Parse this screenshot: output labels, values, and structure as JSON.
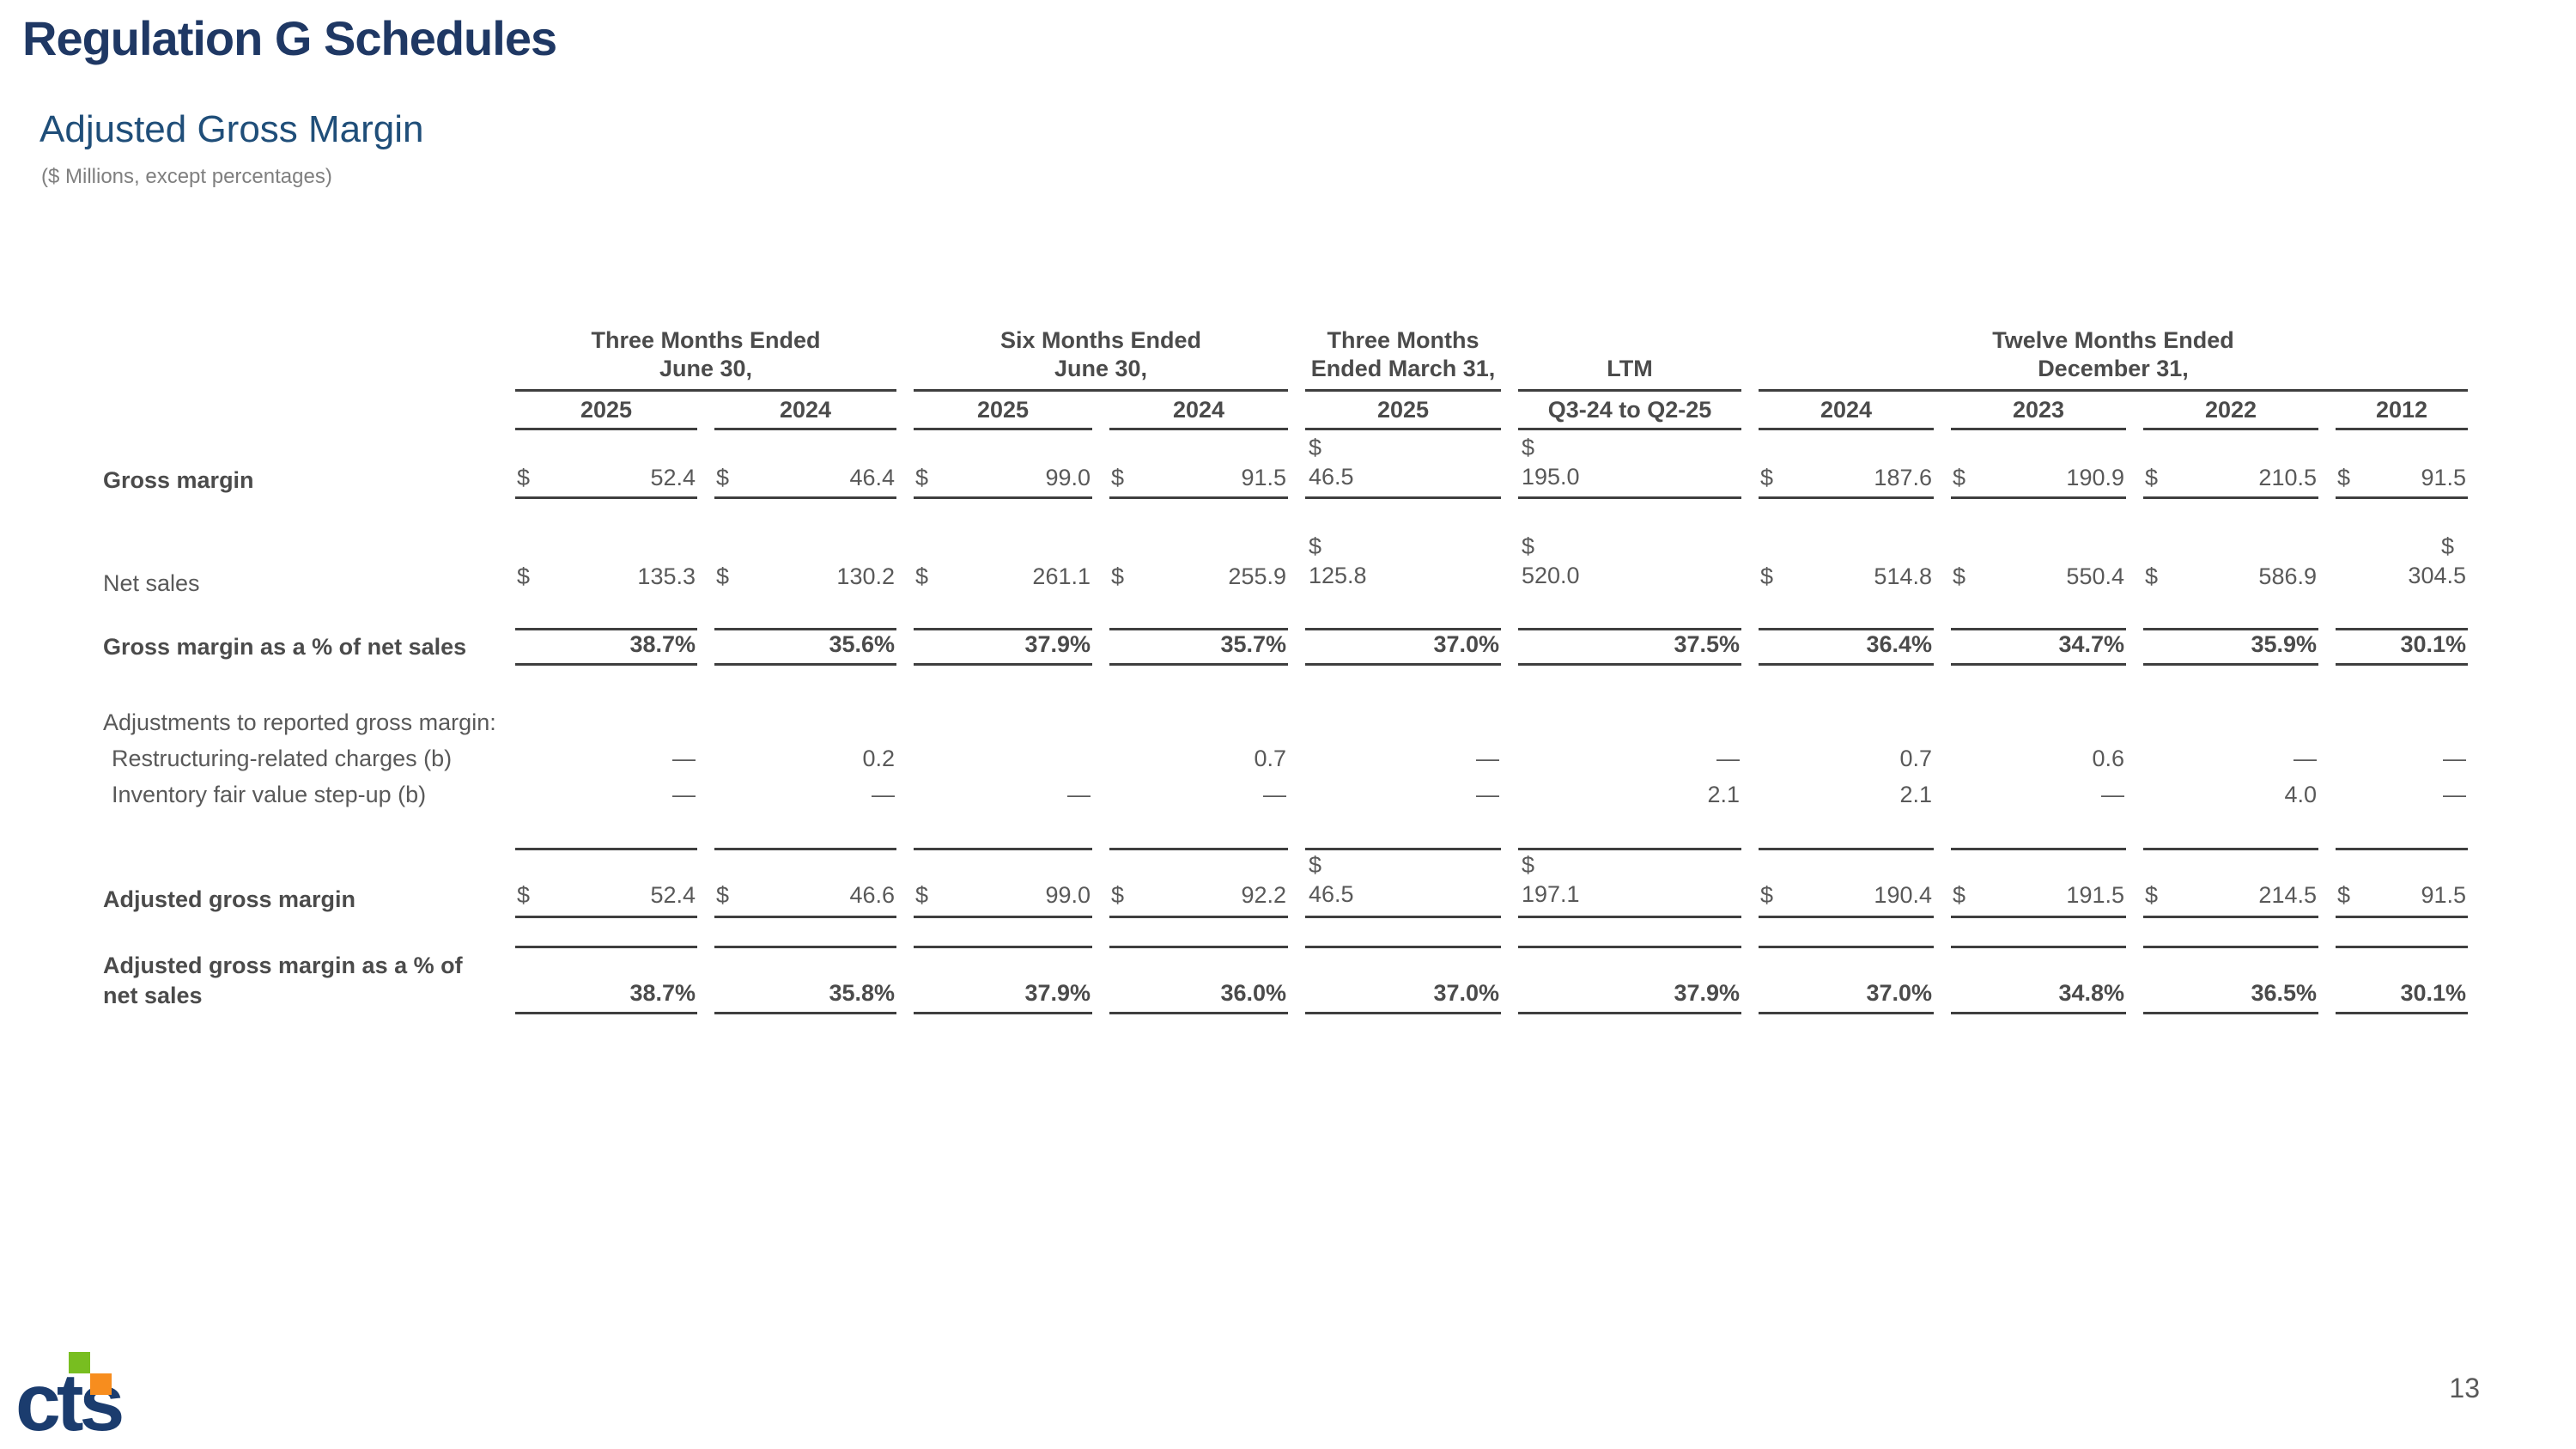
{
  "page": {
    "title": "Regulation G Schedules",
    "subtitle": "Adjusted Gross Margin",
    "units_note": "($ Millions, except percentages)",
    "page_number": "13",
    "logo_text": "cts"
  },
  "colors": {
    "title_navy": "#1f3864",
    "subtitle_blue": "#1f4e79",
    "table_text": "#595959",
    "rule": "#3f3f3f",
    "logo_navy": "#1b3c6e",
    "logo_green": "#78be20",
    "logo_orange": "#f78d1e"
  },
  "table": {
    "groups": [
      {
        "label": "Three Months Ended\nJune 30,",
        "span": 2,
        "years": [
          "2025",
          "2024"
        ]
      },
      {
        "label": "Six Months Ended\nJune 30,",
        "span": 2,
        "years": [
          "2025",
          "2024"
        ]
      },
      {
        "label": "Three Months\nEnded March 31,",
        "span": 1,
        "years": [
          "2025"
        ]
      },
      {
        "label": "LTM",
        "span": 1,
        "years": [
          "Q3-24 to Q2-25"
        ]
      },
      {
        "label": "Twelve Months Ended\nDecember 31,",
        "span": 4,
        "years": [
          "2024",
          "2023",
          "2022",
          "2012"
        ]
      }
    ],
    "rows": [
      {
        "key": "gross",
        "type": "data",
        "label": "Gross margin",
        "label_bold": true,
        "rule_below": true,
        "cells": [
          {
            "d": "$",
            "v": "52.4"
          },
          {
            "d": "$",
            "v": "46.4"
          },
          {
            "d": "$",
            "v": "99.0"
          },
          {
            "d": "$",
            "v": "91.5"
          },
          {
            "d": "$",
            "v": "46.5",
            "wrap": "left"
          },
          {
            "d": "$",
            "v": "195.0",
            "wrap": "left"
          },
          {
            "d": "$",
            "v": "187.6"
          },
          {
            "d": "$",
            "v": "190.9"
          },
          {
            "d": "$",
            "v": "210.5"
          },
          {
            "d": "$",
            "v": "91.5"
          }
        ]
      },
      {
        "key": "netsales",
        "type": "data",
        "label": "Net sales",
        "cells": [
          {
            "d": "$",
            "v": "135.3"
          },
          {
            "d": "$",
            "v": "130.2"
          },
          {
            "d": "$",
            "v": "261.1"
          },
          {
            "d": "$",
            "v": "255.9"
          },
          {
            "d": "$",
            "v": "125.8",
            "wrap": "left"
          },
          {
            "d": "$",
            "v": "520.0",
            "wrap": "left"
          },
          {
            "d": "$",
            "v": "514.8"
          },
          {
            "d": "$",
            "v": "550.4"
          },
          {
            "d": "$",
            "v": "586.9"
          },
          {
            "d": "$",
            "v": "304.5",
            "wrap": "right"
          }
        ]
      },
      {
        "key": "spa",
        "type": "spacer"
      },
      {
        "key": "pct",
        "type": "data",
        "label": "Gross margin as a % of net sales",
        "label_bold": true,
        "bold_values": true,
        "rule_above": true,
        "rule_below": true,
        "cells": [
          {
            "v": "38.7%"
          },
          {
            "v": "35.6%"
          },
          {
            "v": "37.9%"
          },
          {
            "v": "35.7%"
          },
          {
            "v": "37.0%"
          },
          {
            "v": "37.5%"
          },
          {
            "v": "36.4%"
          },
          {
            "v": "34.7%"
          },
          {
            "v": "35.9%"
          },
          {
            "v": "30.1%"
          }
        ]
      },
      {
        "key": "spb",
        "type": "spacer"
      },
      {
        "key": "adjhead",
        "type": "data",
        "label": "Adjustments to reported gross margin:",
        "cells": []
      },
      {
        "key": "restr",
        "type": "data",
        "label": "Restructuring-related charges (b)",
        "indent": true,
        "cells": [
          {
            "v": "—"
          },
          {
            "v": "0.2"
          },
          {
            "v": ""
          },
          {
            "v": "0.7"
          },
          {
            "v": "—"
          },
          {
            "v": "—"
          },
          {
            "v": "0.7"
          },
          {
            "v": "0.6"
          },
          {
            "v": "—"
          },
          {
            "v": "—"
          }
        ]
      },
      {
        "key": "inv",
        "type": "data",
        "label": "Inventory fair value step-up (b)",
        "indent": true,
        "cells": [
          {
            "v": "—"
          },
          {
            "v": "—"
          },
          {
            "v": "—"
          },
          {
            "v": "—"
          },
          {
            "v": "—"
          },
          {
            "v": "2.1"
          },
          {
            "v": "2.1"
          },
          {
            "v": "—"
          },
          {
            "v": "4.0"
          },
          {
            "v": "—"
          }
        ]
      },
      {
        "key": "spc",
        "type": "spacer"
      },
      {
        "key": "rule1",
        "type": "rule"
      },
      {
        "key": "adj",
        "type": "data",
        "label": "Adjusted gross margin",
        "label_bold": true,
        "rule_below": true,
        "cells": [
          {
            "d": "$",
            "v": "52.4"
          },
          {
            "d": "$",
            "v": "46.6"
          },
          {
            "d": "$",
            "v": "99.0"
          },
          {
            "d": "$",
            "v": "92.2"
          },
          {
            "d": "$",
            "v": "46.5",
            "wrap": "left"
          },
          {
            "d": "$",
            "v": "197.1",
            "wrap": "left"
          },
          {
            "d": "$",
            "v": "190.4"
          },
          {
            "d": "$",
            "v": "191.5"
          },
          {
            "d": "$",
            "v": "214.5"
          },
          {
            "d": "$",
            "v": "91.5"
          }
        ]
      },
      {
        "key": "spd",
        "type": "spacer"
      },
      {
        "key": "adjpct",
        "type": "data",
        "label": "Adjusted gross margin as a % of net sales",
        "label_bold": true,
        "bold_values": true,
        "rule_above": true,
        "rule_below": true,
        "cells": [
          {
            "v": "38.7%"
          },
          {
            "v": "35.8%"
          },
          {
            "v": "37.9%"
          },
          {
            "v": "36.0%"
          },
          {
            "v": "37.0%"
          },
          {
            "v": "37.9%"
          },
          {
            "v": "37.0%"
          },
          {
            "v": "34.8%"
          },
          {
            "v": "36.5%"
          },
          {
            "v": "30.1%"
          }
        ]
      }
    ]
  }
}
